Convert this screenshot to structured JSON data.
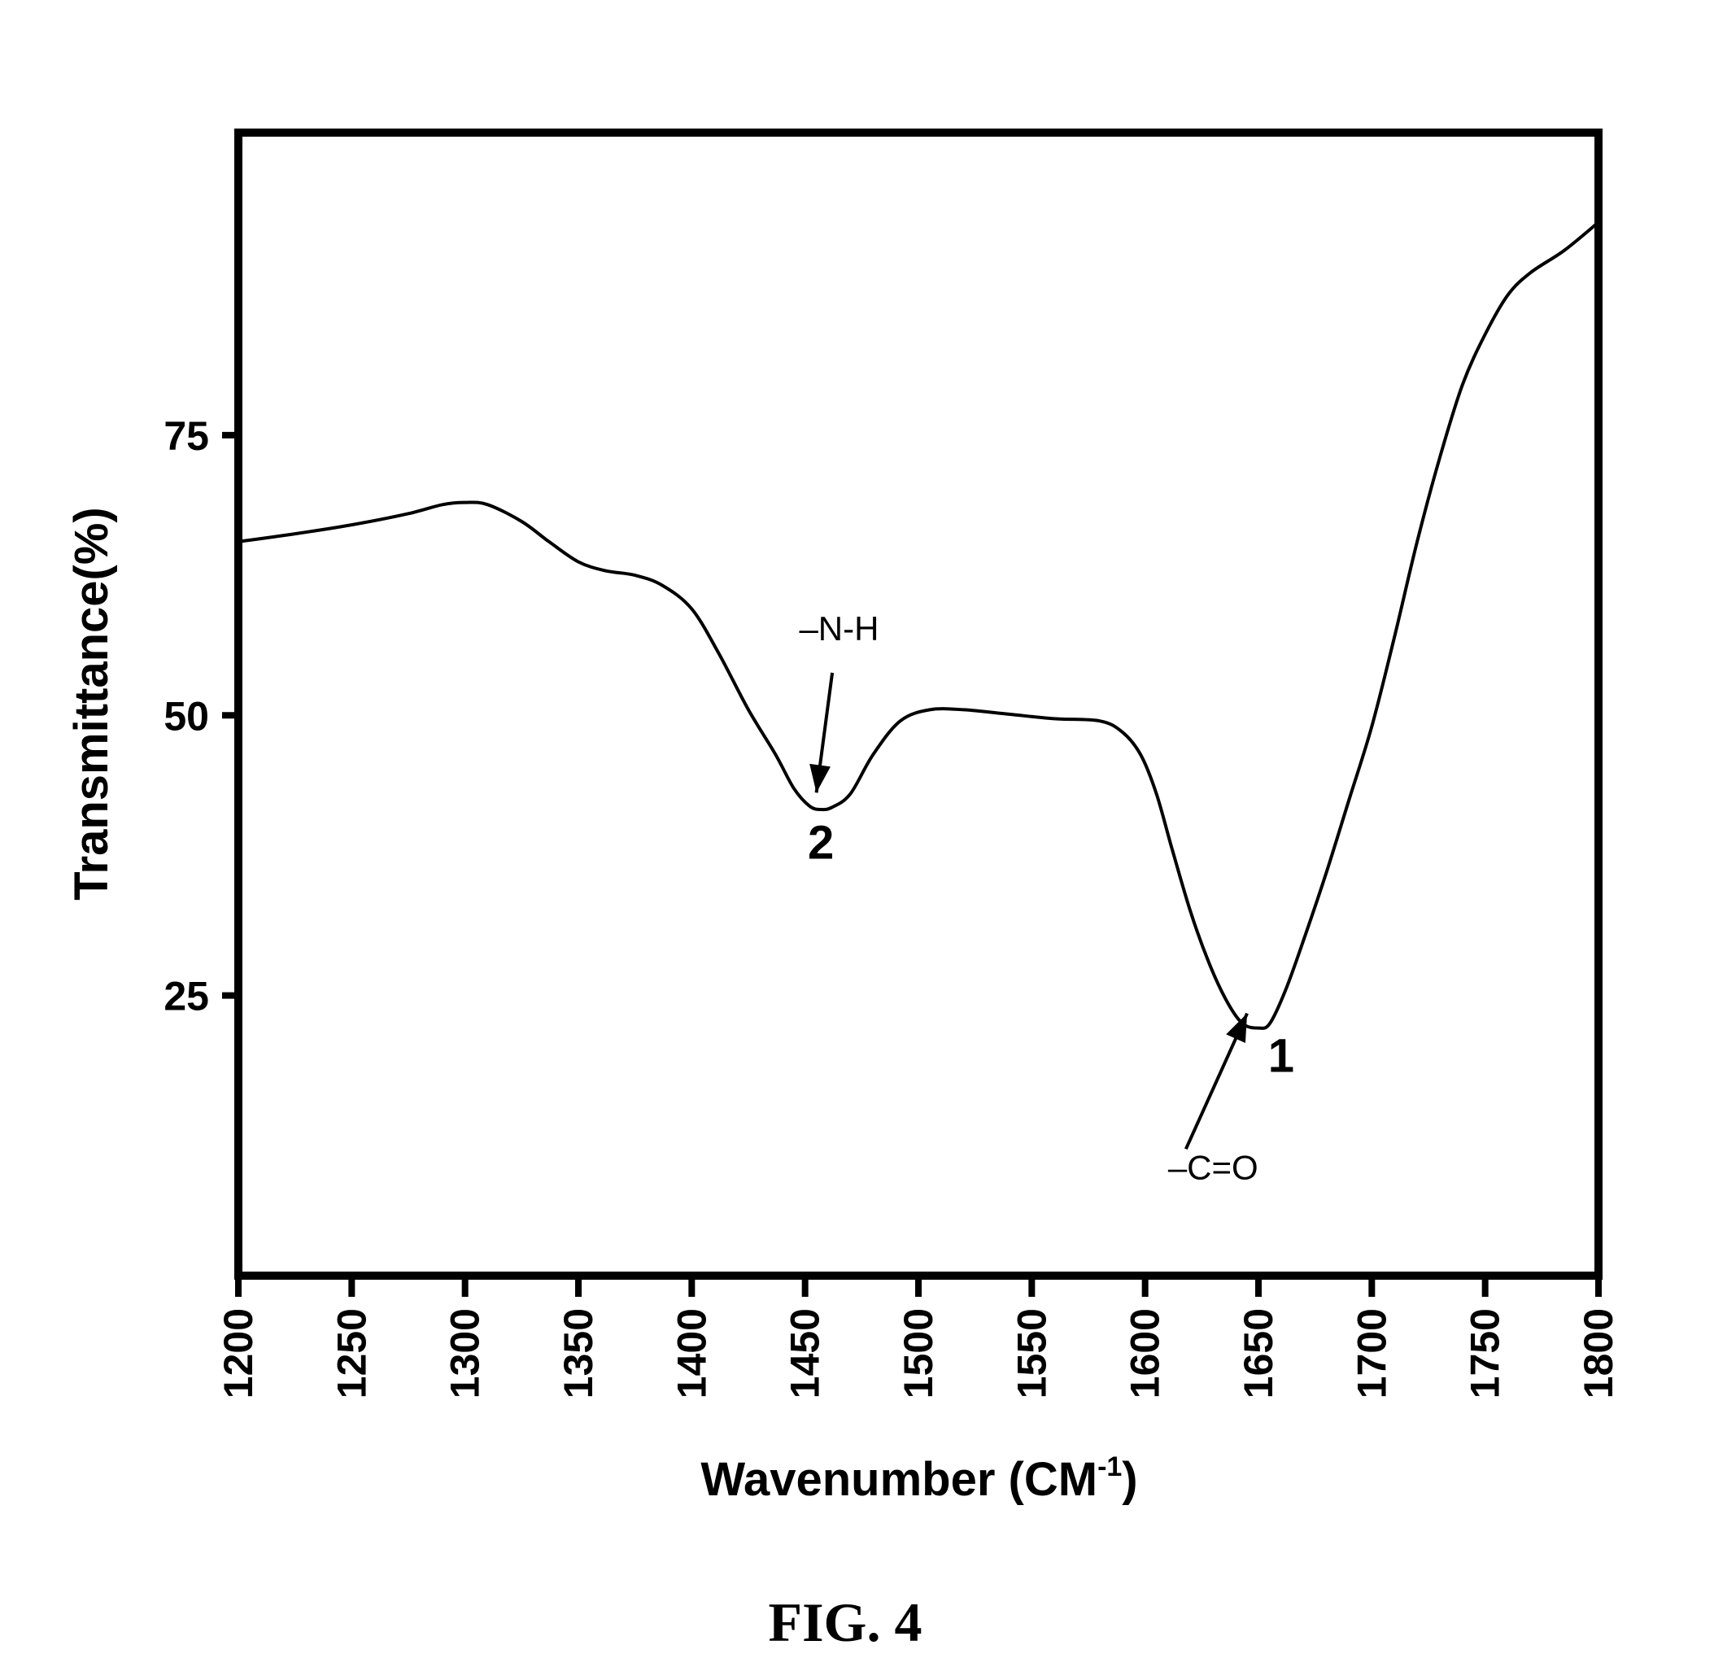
{
  "chart_data": {
    "type": "line",
    "title": "",
    "xlabel": "Wavenumber (CM",
    "xlabel_sup": "-1",
    "xlabel_close": ")",
    "ylabel": "Transmittance(%)",
    "xlim": [
      1200,
      1800
    ],
    "ylim": [
      0,
      102
    ],
    "x_ticks": [
      1200,
      1250,
      1300,
      1350,
      1400,
      1450,
      1500,
      1550,
      1600,
      1650,
      1700,
      1750,
      1800
    ],
    "y_ticks": [
      25,
      50,
      75
    ],
    "grid": false,
    "legend": "none",
    "series": [
      {
        "x": [
          1200,
          1225,
          1250,
          1275,
          1290,
          1300,
          1310,
          1325,
          1337,
          1350,
          1362,
          1375,
          1387,
          1400,
          1412,
          1425,
          1437,
          1445,
          1452,
          1457,
          1462,
          1470,
          1480,
          1492,
          1505,
          1520,
          1540,
          1560,
          1580,
          1590,
          1598,
          1605,
          1612,
          1620,
          1628,
          1636,
          1643,
          1650,
          1655,
          1662,
          1670,
          1680,
          1690,
          1700,
          1710,
          1720,
          1730,
          1740,
          1750,
          1760,
          1770,
          1785,
          1800
        ],
        "y": [
          65.5,
          66.2,
          67,
          68,
          68.8,
          69,
          68.8,
          67.3,
          65.5,
          63.7,
          62.9,
          62.5,
          61.6,
          59.5,
          55.5,
          50.5,
          46.5,
          43.5,
          41.9,
          41.6,
          41.8,
          43,
          46.5,
          49.5,
          50.5,
          50.5,
          50.1,
          49.7,
          49.5,
          48.5,
          46.5,
          43,
          38,
          32.5,
          28,
          24.5,
          22.5,
          22.1,
          22.5,
          25.5,
          30,
          36,
          42.5,
          49,
          57,
          65.5,
          73,
          79.5,
          84,
          87.5,
          89.5,
          91.5,
          94
        ]
      }
    ],
    "annotations": [
      {
        "text": "–N-H",
        "x": 1465,
        "y": 56.7
      },
      {
        "text": "2",
        "x": 1457,
        "y": 37.2
      },
      {
        "text": "1",
        "x": 1660,
        "y": 18.2
      },
      {
        "text": "–C=O",
        "x": 1630,
        "y": 8.6
      }
    ],
    "arrows": [
      {
        "from": {
          "x": 1462,
          "y": 53.8
        },
        "to": {
          "x": 1455,
          "y": 43.1
        }
      },
      {
        "from": {
          "x": 1618,
          "y": 11.3
        },
        "to": {
          "x": 1645,
          "y": 23.4
        }
      }
    ]
  },
  "caption": "FIG. 4"
}
